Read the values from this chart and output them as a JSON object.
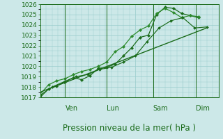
{
  "xlabel": "Pression niveau de la mer( hPa )",
  "bg_color": "#cce8e8",
  "grid_color": "#99cccc",
  "line_color": "#1a6b1a",
  "line_color2": "#2d8b2d",
  "ylim": [
    1017,
    1026
  ],
  "yticks": [
    1017,
    1018,
    1019,
    1020,
    1021,
    1022,
    1023,
    1024,
    1025,
    1026
  ],
  "series1_x": [
    0,
    0.35,
    0.7,
    1.05,
    1.4,
    1.75,
    2.1,
    2.45,
    2.8,
    3.15,
    3.5,
    3.85,
    4.2,
    4.55,
    4.9,
    5.25,
    5.6,
    5.95,
    6.3,
    6.65
  ],
  "series1_y": [
    1017.0,
    1017.8,
    1018.1,
    1018.5,
    1018.9,
    1018.7,
    1019.1,
    1019.8,
    1019.9,
    1020.2,
    1021.0,
    1021.8,
    1022.8,
    1023.0,
    1025.0,
    1025.7,
    1025.6,
    1025.1,
    1024.9,
    1024.7
  ],
  "series2_x": [
    0,
    0.35,
    0.7,
    1.05,
    1.4,
    1.75,
    2.1,
    2.45,
    2.8,
    3.15,
    3.5,
    3.85,
    4.2,
    4.55,
    4.9,
    5.25,
    5.6,
    5.95,
    6.3,
    6.65
  ],
  "series2_y": [
    1017.3,
    1018.2,
    1018.6,
    1018.8,
    1019.2,
    1019.5,
    1019.7,
    1020.0,
    1020.4,
    1021.4,
    1021.9,
    1022.9,
    1023.5,
    1023.9,
    1025.1,
    1025.6,
    1025.2,
    1024.7,
    1024.9,
    1024.8
  ],
  "series3_x": [
    0,
    7.0
  ],
  "series3_y": [
    1017.5,
    1023.7
  ],
  "series4_x": [
    0,
    0.5,
    1.0,
    1.5,
    2.0,
    2.5,
    3.0,
    3.5,
    4.0,
    4.5,
    5.0,
    5.5,
    6.0,
    6.5,
    7.0
  ],
  "series4_y": [
    1017.2,
    1018.0,
    1018.5,
    1019.0,
    1019.2,
    1019.7,
    1019.9,
    1020.4,
    1021.0,
    1022.4,
    1023.7,
    1024.4,
    1024.7,
    1023.7,
    1023.8
  ],
  "vlines_x": [
    1.05,
    2.8,
    4.75,
    6.55
  ],
  "vline_labels": [
    "Ven",
    "Lun",
    "Sam",
    "Dim"
  ],
  "xlim": [
    0,
    7.5
  ],
  "xlabel_fontsize": 8.5,
  "tick_fontsize": 6.5,
  "label_fontsize": 7.0
}
